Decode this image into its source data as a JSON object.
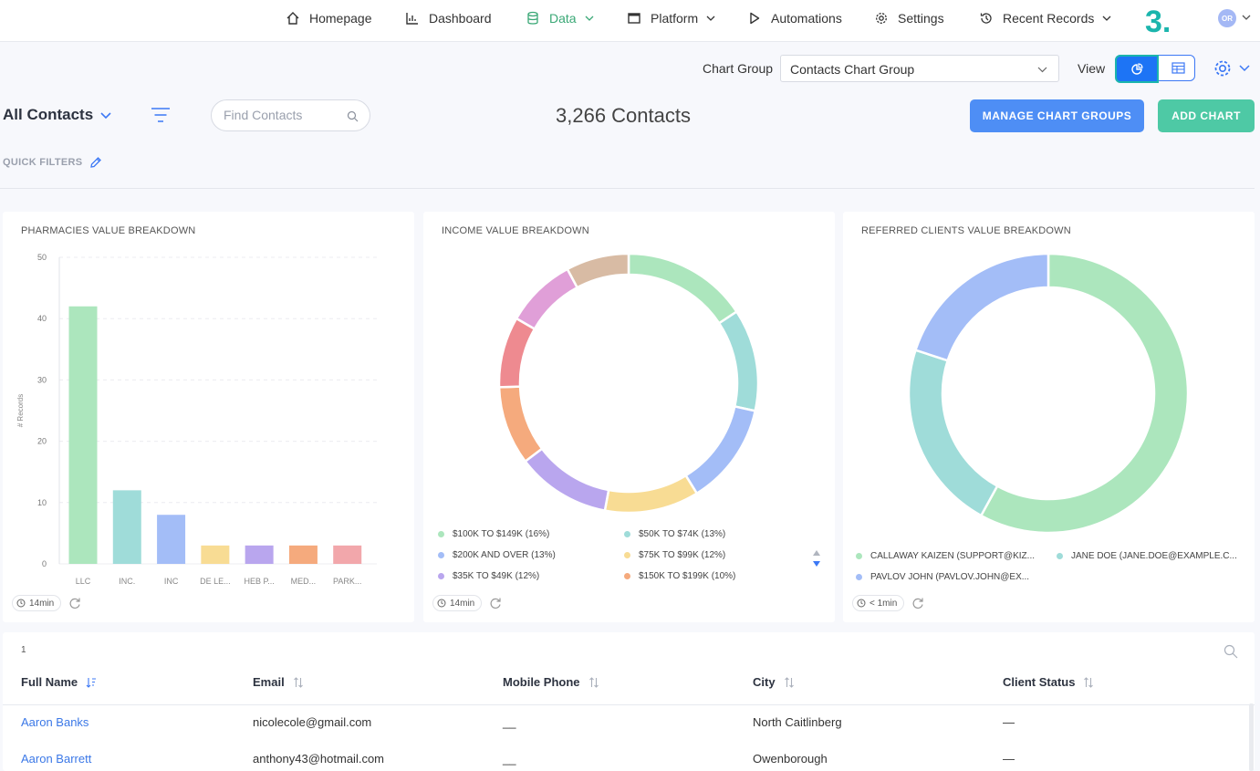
{
  "nav": {
    "items": [
      {
        "label": "Homepage",
        "icon": "home-icon"
      },
      {
        "label": "Dashboard",
        "icon": "dashboard-icon"
      },
      {
        "label": "Data",
        "icon": "database-icon",
        "active": true,
        "has_dropdown": true
      },
      {
        "label": "Platform",
        "icon": "window-icon",
        "has_dropdown": true
      },
      {
        "label": "Automations",
        "icon": "play-icon"
      },
      {
        "label": "Settings",
        "icon": "gear-icon"
      },
      {
        "label": "Recent Records",
        "icon": "history-icon",
        "has_dropdown": true
      }
    ],
    "step_badge": "3.",
    "avatar_initials": "OR"
  },
  "chart_group": {
    "label": "Chart Group",
    "selected": "Contacts Chart Group",
    "view_label": "View"
  },
  "toolbar": {
    "list_title": "All Contacts",
    "search_placeholder": "Find Contacts",
    "contacts_count": "3,266 Contacts",
    "manage_button": "MANAGE CHART GROUPS",
    "add_button": "ADD CHART",
    "quick_filters": "QUICK FILTERS"
  },
  "colors": {
    "accent_blue": "#4e8ef5",
    "accent_green": "#4ec9a5",
    "nav_active": "#3aa876",
    "badge_teal": "#1bb5ad"
  },
  "chart_data": [
    {
      "type": "bar",
      "title": "PHARMACIES VALUE BREAKDOWN",
      "ylabel": "# Records",
      "ylim": [
        0,
        50
      ],
      "yticks": [
        0,
        10,
        20,
        30,
        40,
        50
      ],
      "categories": [
        "LLC",
        "INC.",
        "INC",
        "DE LE...",
        "HEB P...",
        "MED...",
        "PARK..."
      ],
      "values": [
        42,
        12,
        8,
        3,
        3,
        3,
        3
      ],
      "colors": [
        "#ace6bd",
        "#9fdcd9",
        "#a3bdf7",
        "#f8dc94",
        "#b9a6ee",
        "#f5aa7d",
        "#f2a7ab"
      ],
      "updated": "14min"
    },
    {
      "type": "pie",
      "title": "INCOME VALUE BREAKDOWN",
      "slices": [
        {
          "label": "$100K TO $149K (16%)",
          "value": 16,
          "color": "#ace6bd"
        },
        {
          "label": "$50K TO $74K (13%)",
          "value": 13,
          "color": "#9fdcd9"
        },
        {
          "label": "$200K AND OVER (13%)",
          "value": 13,
          "color": "#a3bdf7"
        },
        {
          "label": "$75K TO $99K (12%)",
          "value": 12,
          "color": "#f8dc94"
        },
        {
          "label": "$35K TO $49K (12%)",
          "value": 12,
          "color": "#b9a6ee"
        },
        {
          "label": "$150K TO $199K (10%)",
          "value": 10,
          "color": "#f5aa7d"
        },
        {
          "label": "",
          "value": 9,
          "color": "#ee8a90"
        },
        {
          "label": "",
          "value": 9,
          "color": "#e09fd8"
        },
        {
          "label": "",
          "value": 8,
          "color": "#d8bba4"
        }
      ],
      "updated": "14min"
    },
    {
      "type": "pie",
      "title": "REFERRED CLIENTS VALUE BREAKDOWN",
      "slices": [
        {
          "label": "CALLAWAY KAIZEN (SUPPORT@KIZ...",
          "value": 58,
          "color": "#ace6bd"
        },
        {
          "label": "JANE DOE (JANE.DOE@EXAMPLE.C...",
          "value": 22,
          "color": "#9fdcd9"
        },
        {
          "label": "PAVLOV JOHN (PAVLOV.JOHN@EX...",
          "value": 20,
          "color": "#a3bdf7"
        }
      ],
      "updated": "< 1min"
    }
  ],
  "table": {
    "page": "1",
    "columns": [
      "Full Name",
      "Email",
      "Mobile Phone",
      "City",
      "Client Status"
    ],
    "rows": [
      {
        "name": "Aaron Banks",
        "email": "nicolecole@gmail.com",
        "phone": "__",
        "city": "North Caitlinberg",
        "status": "—"
      },
      {
        "name": "Aaron Barrett",
        "email": "anthony43@hotmail.com",
        "phone": "__",
        "city": "Owenborough",
        "status": "—"
      }
    ]
  }
}
